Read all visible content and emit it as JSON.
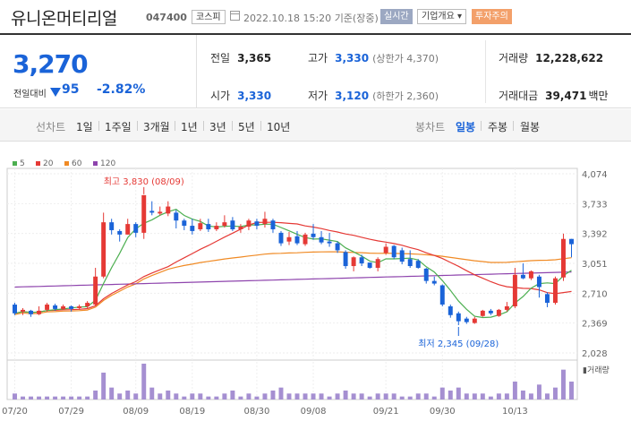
{
  "header": {
    "name": "유니온머티리얼",
    "code": "047400",
    "market": "코스피",
    "date": "2022.10.18 15:20",
    "date_suffix": "기준(장중)",
    "realtime": "실시간",
    "company_info": "기업개요 ▾",
    "warning": "투자주의"
  },
  "price": {
    "current": "3,270",
    "change_label": "전일대비",
    "change": "95",
    "change_rate": "-2.82%",
    "down_color": "#1a63d8"
  },
  "stats": {
    "prev_close": {
      "label": "전일",
      "value": "3,365"
    },
    "high": {
      "label": "고가",
      "value": "3,330",
      "sub": "(상한가 4,370)"
    },
    "volume": {
      "label": "거래량",
      "value": "12,228,622"
    },
    "open": {
      "label": "시가",
      "value": "3,330"
    },
    "low": {
      "label": "저가",
      "value": "3,120",
      "sub": "(하한가 2,360)"
    },
    "amount": {
      "label": "거래대금",
      "value": "39,471",
      "unit": "백만"
    }
  },
  "tabs": {
    "line_label": "선차트",
    "line_periods": [
      "1일",
      "1주일",
      "3개월",
      "1년",
      "3년",
      "5년",
      "10년"
    ],
    "candle_label": "봉차트",
    "candle_periods": [
      "일봉",
      "주봉",
      "월봉"
    ],
    "candle_active": "일봉"
  },
  "chart_data": {
    "type": "candlestick",
    "legend": [
      {
        "name": "5",
        "color": "#4caf50"
      },
      {
        "name": "20",
        "color": "#e53935"
      },
      {
        "name": "60",
        "color": "#f08a24"
      },
      {
        "name": "120",
        "color": "#8e44ad"
      }
    ],
    "y_ticks": [
      "4,074",
      "3,733",
      "3,392",
      "3,051",
      "2,710",
      "2,369",
      "2,028"
    ],
    "ylim": [
      2028,
      4074
    ],
    "x_ticks": [
      "07/20",
      "07/29",
      "08/09",
      "08/19",
      "08/30",
      "09/08",
      "09/21",
      "09/30",
      "10/13"
    ],
    "high_annotation": "최고 3,830 (08/09)",
    "low_annotation": "최저 2,345 (09/28)",
    "volume_label": "거래량",
    "up_color": "#e53935",
    "down_color": "#1a63d8",
    "candles": [
      [
        2580,
        2480,
        2600,
        2460
      ],
      [
        2500,
        2520,
        2540,
        2460
      ],
      [
        2510,
        2470,
        2520,
        2440
      ],
      [
        2470,
        2510,
        2560,
        2460
      ],
      [
        2520,
        2580,
        2600,
        2500
      ],
      [
        2570,
        2530,
        2590,
        2510
      ],
      [
        2530,
        2560,
        2580,
        2520
      ],
      [
        2560,
        2530,
        2570,
        2500
      ],
      [
        2540,
        2560,
        2580,
        2520
      ],
      [
        2560,
        2600,
        2620,
        2540
      ],
      [
        2580,
        2900,
        3000,
        2560
      ],
      [
        2900,
        3520,
        3630,
        2880
      ],
      [
        3520,
        3430,
        3560,
        3380
      ],
      [
        3420,
        3380,
        3440,
        3300
      ],
      [
        3380,
        3500,
        3560,
        3380
      ],
      [
        3500,
        3400,
        3520,
        3350
      ],
      [
        3400,
        3830,
        3830,
        3330
      ],
      [
        3650,
        3630,
        3760,
        3600
      ],
      [
        3620,
        3640,
        3700,
        3600
      ],
      [
        3620,
        3700,
        3760,
        3590
      ],
      [
        3630,
        3540,
        3660,
        3450
      ],
      [
        3540,
        3480,
        3560,
        3430
      ],
      [
        3480,
        3420,
        3560,
        3380
      ],
      [
        3440,
        3510,
        3560,
        3420
      ],
      [
        3500,
        3440,
        3560,
        3410
      ],
      [
        3440,
        3480,
        3520,
        3420
      ],
      [
        3480,
        3520,
        3600,
        3460
      ],
      [
        3540,
        3440,
        3580,
        3420
      ],
      [
        3440,
        3470,
        3500,
        3400
      ],
      [
        3470,
        3540,
        3560,
        3430
      ],
      [
        3530,
        3480,
        3560,
        3440
      ],
      [
        3500,
        3560,
        3640,
        3460
      ],
      [
        3540,
        3440,
        3560,
        3400
      ],
      [
        3400,
        3280,
        3420,
        3250
      ],
      [
        3300,
        3350,
        3410,
        3260
      ],
      [
        3360,
        3280,
        3420,
        3260
      ],
      [
        3270,
        3380,
        3400,
        3250
      ],
      [
        3390,
        3350,
        3500,
        3320
      ],
      [
        3350,
        3290,
        3420,
        3270
      ],
      [
        3300,
        3280,
        3400,
        3240
      ],
      [
        3280,
        3200,
        3300,
        3170
      ],
      [
        3180,
        3020,
        3200,
        2990
      ],
      [
        3020,
        3120,
        3130,
        2960
      ],
      [
        3120,
        3050,
        3150,
        3020
      ],
      [
        3060,
        3000,
        3060,
        2990
      ],
      [
        3000,
        3100,
        3120,
        2960
      ],
      [
        3170,
        3240,
        3280,
        3150
      ],
      [
        3250,
        3120,
        3260,
        3100
      ],
      [
        3200,
        3070,
        3230,
        3040
      ],
      [
        3100,
        3020,
        3200,
        3000
      ],
      [
        3080,
        3000,
        3100,
        2990
      ],
      [
        2990,
        2850,
        3000,
        2820
      ],
      [
        2850,
        2820,
        2900,
        2800
      ],
      [
        2800,
        2580,
        2810,
        2560
      ],
      [
        2560,
        2460,
        2580,
        2430
      ],
      [
        2480,
        2390,
        2500,
        2345
      ],
      [
        2420,
        2380,
        2440,
        2360
      ],
      [
        2370,
        2420,
        2440,
        2360
      ],
      [
        2450,
        2510,
        2520,
        2440
      ],
      [
        2510,
        2480,
        2530,
        2460
      ],
      [
        2450,
        2520,
        2530,
        2440
      ],
      [
        2520,
        2560,
        2610,
        2500
      ],
      [
        2560,
        2920,
        3000,
        2540
      ],
      [
        2920,
        2880,
        3050,
        2870
      ],
      [
        2880,
        2960,
        2970,
        2860
      ],
      [
        2900,
        2780,
        2920,
        2660
      ],
      [
        2700,
        2600,
        2720,
        2550
      ],
      [
        2600,
        2880,
        2900,
        2580
      ],
      [
        2890,
        3330,
        3390,
        2850
      ],
      [
        3330,
        3270,
        3330,
        3120
      ]
    ],
    "volume": [
      2,
      1,
      1,
      1,
      1,
      1,
      1,
      1,
      1,
      1,
      3,
      9,
      4,
      2,
      3,
      2,
      12,
      4,
      2,
      3,
      2,
      1,
      2,
      2,
      1,
      1,
      2,
      3,
      1,
      2,
      1,
      2,
      3,
      4,
      2,
      2,
      2,
      2,
      2,
      1,
      2,
      3,
      2,
      2,
      1,
      2,
      2,
      2,
      1,
      1,
      2,
      2,
      1,
      4,
      3,
      4,
      2,
      2,
      2,
      1,
      2,
      2,
      6,
      3,
      2,
      5,
      2,
      4,
      10,
      6
    ]
  }
}
